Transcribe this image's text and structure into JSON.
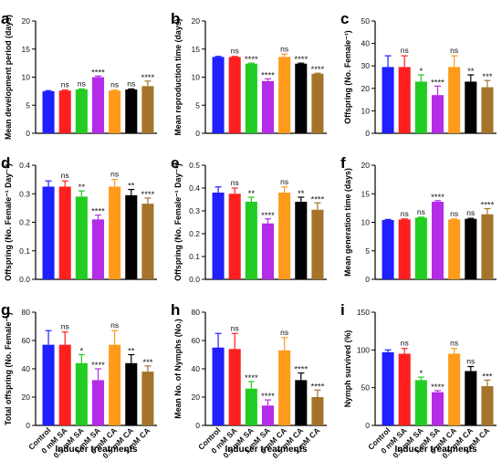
{
  "chart_data": [
    {
      "type": "bar",
      "panel": "a",
      "ylabel": "Mean development period (days)",
      "categories": [
        "Control",
        "0 mM SA",
        "0.5 mM SA",
        "1 mM SA",
        "0 mM CA",
        "0.5 mM CA",
        "1 mM CA"
      ],
      "values": [
        7.5,
        7.6,
        7.8,
        10.0,
        7.6,
        7.8,
        8.4
      ],
      "errors": [
        0.1,
        0.1,
        0.1,
        0.2,
        0.1,
        0.1,
        0.9
      ],
      "significance": [
        "",
        "ns",
        "ns",
        "****",
        "ns",
        "ns",
        "****"
      ],
      "ylim": [
        0,
        20
      ],
      "yticks": [
        "0",
        "5",
        "10",
        "15",
        "20"
      ]
    },
    {
      "type": "bar",
      "panel": "b",
      "ylabel": "Mean reproduction time (days)",
      "categories": [
        "Control",
        "0 mM SA",
        "0.5 mM SA",
        "1 mM SA",
        "0 mM CA",
        "0.5 mM CA",
        "1 mM CA"
      ],
      "values": [
        13.6,
        13.6,
        12.4,
        9.3,
        13.6,
        12.4,
        10.6
      ],
      "errors": [
        0.1,
        0.1,
        0.1,
        0.4,
        0.5,
        0.1,
        0.1
      ],
      "significance": [
        "",
        "ns",
        "****",
        "****",
        "ns",
        "****",
        "****"
      ],
      "ylim": [
        0,
        20
      ],
      "yticks": [
        "0",
        "5",
        "10",
        "15",
        "20"
      ]
    },
    {
      "type": "bar",
      "panel": "c",
      "ylabel": "Offspring (No. Female⁻¹)",
      "categories": [
        "Control",
        "0 mM SA",
        "0.5 mM SA",
        "1 mM SA",
        "0 mM CA",
        "0.5 mM CA",
        "1 mM CA"
      ],
      "values": [
        29.5,
        29.5,
        23.0,
        17.0,
        29.5,
        23.0,
        20.5
      ],
      "errors": [
        5.0,
        5.0,
        3.0,
        4.0,
        5.0,
        3.0,
        3.0
      ],
      "significance": [
        "",
        "ns",
        "*",
        "****",
        "ns",
        "**",
        "***"
      ],
      "ylim": [
        0,
        50
      ],
      "yticks": [
        "0",
        "10",
        "20",
        "30",
        "40",
        "50"
      ]
    },
    {
      "type": "bar",
      "panel": "d",
      "ylabel": "Offspring (No. Female⁻¹ Day⁻¹)",
      "categories": [
        "Control",
        "0 mM SA",
        "0.5 mM SA",
        "1 mM SA",
        "0 mM CA",
        "0.5 mM CA",
        "1 mM CA"
      ],
      "values": [
        0.325,
        0.325,
        0.29,
        0.21,
        0.325,
        0.295,
        0.265
      ],
      "errors": [
        0.02,
        0.02,
        0.02,
        0.015,
        0.025,
        0.02,
        0.02
      ],
      "significance": [
        "",
        "ns",
        "**",
        "****",
        "ns",
        "**",
        "****"
      ],
      "ylim": [
        0,
        0.4
      ],
      "yticks": [
        "0.0",
        "0.1",
        "0.2",
        "0.3",
        "0.4"
      ]
    },
    {
      "type": "bar",
      "panel": "e",
      "ylabel": "Offspring (No. Female⁻¹ Day⁻¹)",
      "categories": [
        "Control",
        "0 mM SA",
        "0.5 mM SA",
        "1 mM SA",
        "0 mM CA",
        "0.5 mM CA",
        "1 mM CA"
      ],
      "values": [
        0.38,
        0.375,
        0.34,
        0.245,
        0.38,
        0.34,
        0.305
      ],
      "errors": [
        0.025,
        0.025,
        0.02,
        0.02,
        0.025,
        0.02,
        0.03
      ],
      "significance": [
        "",
        "ns",
        "**",
        "****",
        "ns",
        "**",
        "****"
      ],
      "ylim": [
        0,
        0.5
      ],
      "yticks": [
        "0.0",
        "0.1",
        "0.2",
        "0.3",
        "0.4",
        "0.5"
      ]
    },
    {
      "type": "bar",
      "panel": "f",
      "ylabel": "Mean generation time (days)",
      "categories": [
        "Control",
        "0 mM SA",
        "0.5 mM SA",
        "1 mM SA",
        "0 mM CA",
        "0.5 mM CA",
        "1 mM CA"
      ],
      "values": [
        10.4,
        10.5,
        10.8,
        13.6,
        10.5,
        10.6,
        11.4
      ],
      "errors": [
        0.1,
        0.1,
        0.1,
        0.2,
        0.1,
        0.1,
        1.0
      ],
      "significance": [
        "",
        "ns",
        "ns",
        "****",
        "ns",
        "ns",
        "****"
      ],
      "ylim": [
        0,
        20
      ],
      "yticks": [
        "0",
        "5",
        "10",
        "15",
        "20"
      ]
    },
    {
      "type": "bar",
      "panel": "g",
      "ylabel": "Total offspring (No. Female⁻¹)",
      "categories": [
        "Control",
        "0 mM SA",
        "0.5 mM SA",
        "1 mM SA",
        "0 mM CA",
        "0.5 mM CA",
        "1 mM CA"
      ],
      "values": [
        57,
        57,
        44,
        32,
        57,
        44,
        38
      ],
      "errors": [
        10,
        9,
        6,
        8,
        10,
        6,
        4
      ],
      "significance": [
        "",
        "ns",
        "*",
        "****",
        "ns",
        "**",
        "***"
      ],
      "ylim": [
        0,
        80
      ],
      "yticks": [
        "0",
        "20",
        "40",
        "60",
        "80"
      ]
    },
    {
      "type": "bar",
      "panel": "h",
      "ylabel": "Mean No. of Nymphs (No.)",
      "categories": [
        "Control",
        "0 mM SA",
        "0.5 mM SA",
        "1 mM SA",
        "0 mM CA",
        "0.5 mM CA",
        "1 mM CA"
      ],
      "values": [
        55,
        54,
        26,
        14,
        53,
        32,
        20
      ],
      "errors": [
        10,
        11,
        5,
        4,
        9,
        5,
        5
      ],
      "significance": [
        "",
        "ns",
        "****",
        "****",
        "ns",
        "****",
        "****"
      ],
      "ylim": [
        0,
        80
      ],
      "yticks": [
        "0",
        "20",
        "40",
        "60",
        "80"
      ]
    },
    {
      "type": "bar",
      "panel": "i",
      "ylabel": "Nymph survived (%)",
      "categories": [
        "Control",
        "0 mM SA",
        "0.5 mM SA",
        "1 mM SA",
        "0 mM CA",
        "0.5 mM CA",
        "1 mM CA"
      ],
      "values": [
        97,
        95,
        60,
        44,
        95,
        72,
        52
      ],
      "errors": [
        3,
        7,
        4,
        2,
        7,
        6,
        8
      ],
      "significance": [
        "",
        "ns",
        "*",
        "****",
        "ns",
        "ns",
        "***"
      ],
      "ylim": [
        0,
        150
      ],
      "yticks": [
        "0",
        "50",
        "100",
        "150"
      ]
    }
  ],
  "shared_xlabel": "Inducer treatments",
  "colors": [
    "#1f1fff",
    "#ff1f1f",
    "#22cc22",
    "#b42be8",
    "#ff9a1a",
    "#000000",
    "#a5742a"
  ]
}
